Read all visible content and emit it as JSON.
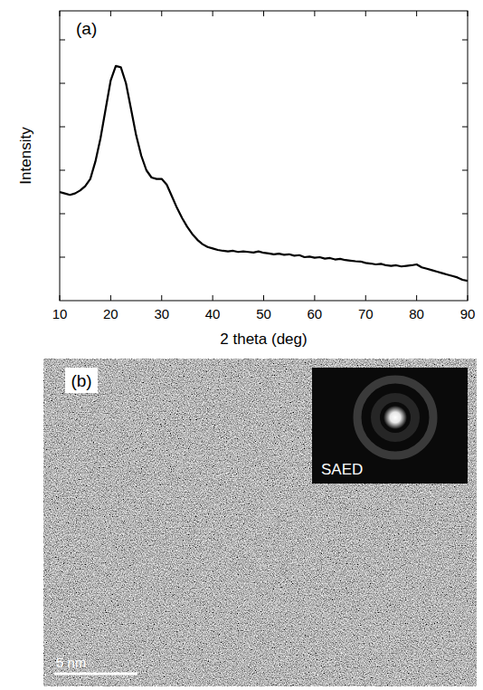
{
  "chart_data": {
    "type": "line",
    "panel_label": "(a)",
    "x_label": "2 theta (deg)",
    "y_label": "Intensity",
    "color": "#000000",
    "x": [
      10,
      11,
      12,
      13,
      14,
      15,
      16,
      17,
      18,
      19,
      20,
      21,
      22,
      23,
      24,
      25,
      26,
      27,
      28,
      29,
      30,
      31,
      32,
      33,
      34,
      35,
      36,
      37,
      38,
      39,
      40,
      41,
      42,
      43,
      44,
      45,
      46,
      47,
      48,
      49,
      50,
      51,
      52,
      53,
      54,
      55,
      56,
      57,
      58,
      59,
      60,
      61,
      62,
      63,
      64,
      65,
      66,
      67,
      68,
      69,
      70,
      71,
      72,
      73,
      74,
      75,
      76,
      77,
      78,
      79,
      80,
      81,
      82,
      83,
      84,
      85,
      86,
      87,
      88,
      89,
      90
    ],
    "values": [
      3.75,
      3.7,
      3.65,
      3.7,
      3.8,
      3.95,
      4.2,
      4.8,
      5.6,
      6.6,
      7.6,
      8.1,
      8.05,
      7.5,
      6.6,
      5.7,
      5.0,
      4.5,
      4.25,
      4.2,
      4.2,
      4.0,
      3.6,
      3.2,
      2.85,
      2.55,
      2.3,
      2.1,
      1.95,
      1.85,
      1.8,
      1.75,
      1.72,
      1.7,
      1.72,
      1.68,
      1.7,
      1.68,
      1.66,
      1.7,
      1.65,
      1.63,
      1.6,
      1.62,
      1.58,
      1.6,
      1.55,
      1.57,
      1.5,
      1.52,
      1.48,
      1.5,
      1.45,
      1.47,
      1.42,
      1.44,
      1.4,
      1.38,
      1.36,
      1.35,
      1.3,
      1.28,
      1.25,
      1.27,
      1.22,
      1.2,
      1.22,
      1.18,
      1.2,
      1.22,
      1.25,
      1.15,
      1.1,
      1.05,
      1.0,
      0.95,
      0.9,
      0.85,
      0.8,
      0.72,
      0.68
    ],
    "xlim": [
      10,
      90
    ],
    "xticks": [
      10,
      20,
      30,
      40,
      50,
      60,
      70,
      80,
      90
    ],
    "ylim": [
      0,
      10
    ],
    "yticks": [
      1.5,
      3,
      4.5,
      6,
      7.5,
      9
    ],
    "tick_labels": "x",
    "grid": false
  },
  "image_panel": {
    "label": "(b)",
    "inset_label": "SAED",
    "scale_bar": "5 nm"
  }
}
